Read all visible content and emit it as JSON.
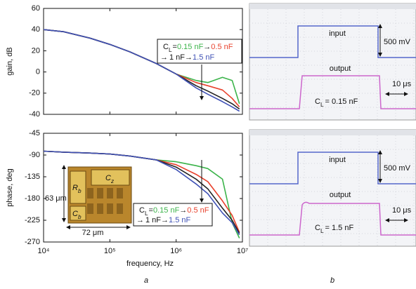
{
  "chart_data": [
    {
      "type": "line",
      "ylabel": "gain, dB",
      "xscale": "log",
      "xlim": [
        10000,
        10000000
      ],
      "ylim": [
        -40,
        60
      ],
      "yticks": [
        -40,
        -20,
        0,
        20,
        40,
        60
      ],
      "x": [
        10000,
        20000,
        50000,
        100000,
        200000,
        500000,
        1000000,
        2000000,
        3000000,
        5000000,
        7000000,
        9000000
      ],
      "series": [
        {
          "name": "0.15 nF",
          "color": "#3cb44b",
          "values": [
            40,
            38,
            32,
            26,
            19,
            8,
            -2,
            -8,
            -10,
            -5,
            -8,
            -30
          ]
        },
        {
          "name": "0.5 nF",
          "color": "#e8412c",
          "values": [
            40,
            38,
            32,
            26,
            19,
            8,
            -2,
            -10,
            -13,
            -17,
            -25,
            -33
          ]
        },
        {
          "name": "1 nF",
          "color": "#222222",
          "values": [
            40,
            38,
            32,
            26,
            19,
            8,
            -2,
            -13,
            -18,
            -25,
            -30,
            -35
          ]
        },
        {
          "name": "1.5 nF",
          "color": "#3f51b5",
          "values": [
            40,
            38,
            32,
            26,
            19,
            8,
            -2,
            -15,
            -21,
            -28,
            -33,
            -37
          ]
        }
      ],
      "legend_label": {
        "symbol": "C",
        "subscript": "L",
        "sign": "=",
        "arrow": "→"
      }
    },
    {
      "type": "line",
      "ylabel": "phase, deg",
      "xlabel": "frequency, Hz",
      "xscale": "log",
      "xlim": [
        10000,
        10000000
      ],
      "xticks": [
        {
          "value": 10000,
          "label": "10⁴"
        },
        {
          "value": 100000,
          "label": "10⁵"
        },
        {
          "value": 1000000,
          "label": "10⁶"
        },
        {
          "value": 10000000,
          "label": "10⁷"
        }
      ],
      "ylim": [
        -270,
        -45
      ],
      "yticks": [
        -270,
        -225,
        -180,
        -135,
        -90,
        -45
      ],
      "x": [
        10000,
        20000,
        50000,
        100000,
        200000,
        500000,
        1000000,
        2000000,
        3000000,
        5000000,
        7000000,
        9000000
      ],
      "series": [
        {
          "name": "0.15 nF",
          "color": "#3cb44b",
          "values": [
            -82,
            -84,
            -86,
            -88,
            -92,
            -100,
            -104,
            -112,
            -118,
            -140,
            -230,
            -262
          ]
        },
        {
          "name": "0.5 nF",
          "color": "#e8412c",
          "values": [
            -82,
            -84,
            -86,
            -88,
            -92,
            -100,
            -110,
            -130,
            -145,
            -185,
            -215,
            -250
          ]
        },
        {
          "name": "1 nF",
          "color": "#222222",
          "values": [
            -82,
            -84,
            -86,
            -88,
            -92,
            -100,
            -115,
            -140,
            -160,
            -200,
            -225,
            -252
          ]
        },
        {
          "name": "1.5 nF",
          "color": "#3f51b5",
          "values": [
            -82,
            -84,
            -86,
            -88,
            -92,
            -100,
            -120,
            -150,
            -170,
            -210,
            -230,
            -255
          ]
        }
      ],
      "legend_label": {
        "symbol": "C",
        "subscript": "L",
        "sign": "=",
        "arrow": "→"
      }
    }
  ],
  "inset": {
    "labels": [
      {
        "symbol": "R",
        "subscript": "b"
      },
      {
        "symbol": "C",
        "subscript": "z"
      },
      {
        "symbol": "C",
        "subscript": "b"
      }
    ],
    "height": "63 μm",
    "width": "72 μm"
  },
  "scopes": [
    {
      "input": "input",
      "output": "output",
      "voltage_scale": "500 mV",
      "time_scale": "10 μs",
      "load": {
        "symbol": "C",
        "subscript": "L",
        "sign": "=",
        "value": "0.15 nF"
      }
    },
    {
      "input": "input",
      "output": "output",
      "voltage_scale": "500 mV",
      "time_scale": "10 μs",
      "load": {
        "symbol": "C",
        "subscript": "L",
        "sign": "=",
        "value": "1.5 nF"
      }
    }
  ],
  "panel_labels": [
    "a",
    "b"
  ]
}
